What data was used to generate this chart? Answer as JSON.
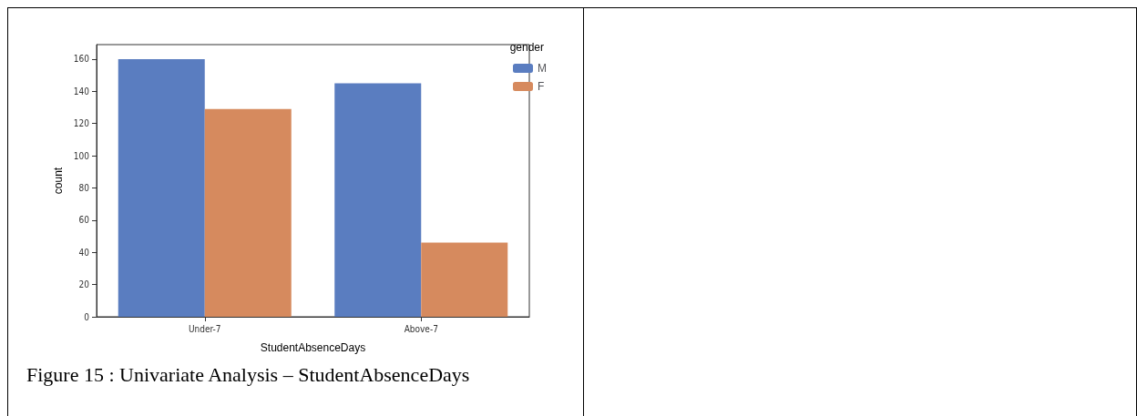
{
  "chart_data": {
    "type": "bar",
    "xlabel": "StudentAbsenceDays",
    "ylabel": "count",
    "legend_title": "gender",
    "categories": [
      "Under-7",
      "Above-7"
    ],
    "series": [
      {
        "name": "M",
        "color": "#5a7dc0",
        "values": [
          160,
          145
        ]
      },
      {
        "name": "F",
        "color": "#d68a5e",
        "values": [
          129,
          46
        ]
      }
    ],
    "ylim": [
      0,
      169
    ],
    "yticks": [
      0,
      20,
      40,
      60,
      80,
      100,
      120,
      140,
      160
    ],
    "grid": false,
    "legend": "top right",
    "annotations": [
      "Figure 15 : Univariate Analysis – StudentAbsenceDays"
    ]
  }
}
